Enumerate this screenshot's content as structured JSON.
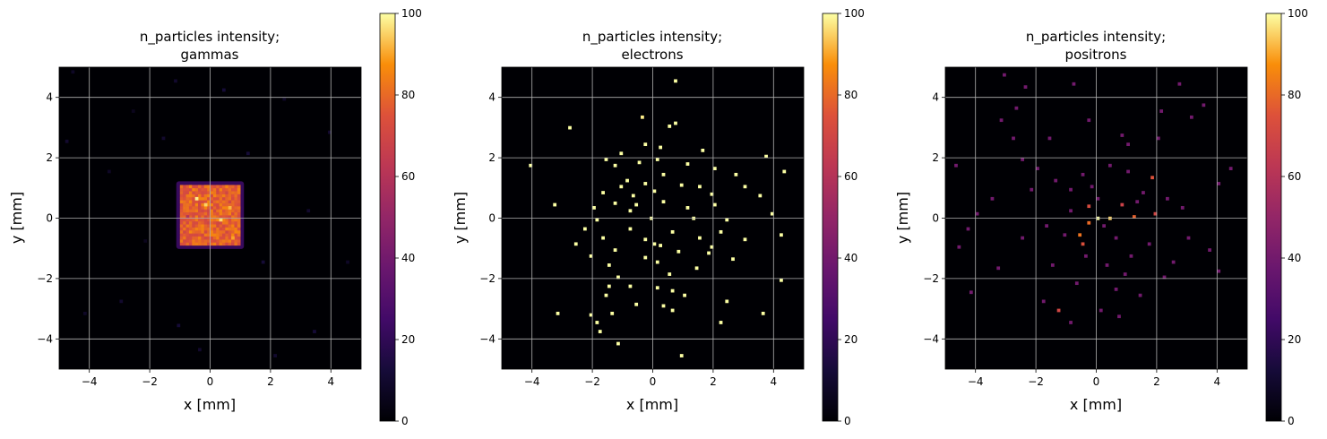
{
  "chart_data": [
    {
      "type": "heatmap",
      "title_line1": "n_particles intensity;",
      "title_line2": "gammas",
      "xlabel": "x [mm]",
      "ylabel": "y [mm]",
      "xlim": [
        -5,
        5
      ],
      "ylim": [
        -5,
        5
      ],
      "xticks": [
        "−4",
        "−2",
        "0",
        "2",
        "4"
      ],
      "yticks": [
        "−4",
        "−2",
        "0",
        "2",
        "4"
      ],
      "grid": true,
      "colormap": "inferno",
      "color_range": [
        0,
        100
      ],
      "colorbar_ticks": [
        "0",
        "20",
        "40",
        "60",
        "80",
        "100"
      ],
      "background_value": 0,
      "regions": [
        {
          "x_range": [
            -1.0,
            1.0
          ],
          "y_range": [
            -0.9,
            1.1
          ],
          "value": 78,
          "jitter": 8
        }
      ],
      "hot_cells": [
        {
          "x": -0.5,
          "y": 0.6,
          "value": 98
        },
        {
          "x": 0.3,
          "y": -0.1,
          "value": 96
        },
        {
          "x": -0.2,
          "y": 0.4,
          "value": 95
        },
        {
          "x": 0.6,
          "y": 0.3,
          "value": 92
        },
        {
          "x": 0.7,
          "y": -0.7,
          "value": 90
        },
        {
          "x": -0.8,
          "y": 0.0,
          "value": 60
        }
      ],
      "points": [
        {
          "x": -4.6,
          "y": 4.8,
          "value": 8
        },
        {
          "x": -2.6,
          "y": 3.5,
          "value": 6
        },
        {
          "x": -1.2,
          "y": 4.5,
          "value": 10
        },
        {
          "x": 0.4,
          "y": 4.2,
          "value": 12
        },
        {
          "x": -4.8,
          "y": 2.5,
          "value": 10
        },
        {
          "x": -3.4,
          "y": 1.5,
          "value": 8
        },
        {
          "x": -2.2,
          "y": -0.8,
          "value": 6
        },
        {
          "x": -4.2,
          "y": -3.2,
          "value": 8
        },
        {
          "x": -3.0,
          "y": -2.8,
          "value": 10
        },
        {
          "x": -1.1,
          "y": -3.6,
          "value": 12
        },
        {
          "x": 2.1,
          "y": -4.6,
          "value": 10
        },
        {
          "x": 3.4,
          "y": -3.8,
          "value": 12
        },
        {
          "x": 3.9,
          "y": 2.8,
          "value": 10
        },
        {
          "x": 2.4,
          "y": 3.9,
          "value": 8
        },
        {
          "x": 3.2,
          "y": 0.2,
          "value": 10
        },
        {
          "x": 4.5,
          "y": -1.5,
          "value": 8
        },
        {
          "x": 1.7,
          "y": -1.5,
          "value": 12
        },
        {
          "x": -0.4,
          "y": -4.4,
          "value": 10
        },
        {
          "x": 1.2,
          "y": 2.1,
          "value": 12
        },
        {
          "x": -1.6,
          "y": 2.6,
          "value": 10
        }
      ]
    },
    {
      "type": "heatmap",
      "title_line1": "n_particles intensity;",
      "title_line2": "electrons",
      "xlabel": "x [mm]",
      "ylabel": "y [mm]",
      "xlim": [
        -5,
        5
      ],
      "ylim": [
        -5,
        5
      ],
      "xticks": [
        "−4",
        "−2",
        "0",
        "2",
        "4"
      ],
      "yticks": [
        "−4",
        "−2",
        "0",
        "2",
        "4"
      ],
      "grid": true,
      "colormap": "inferno",
      "color_range": [
        0,
        100
      ],
      "colorbar_ticks": [
        "0",
        "20",
        "40",
        "60",
        "80",
        "100"
      ],
      "background_value": 0,
      "regions": [],
      "hot_cells": [],
      "points": [
        {
          "x": 0.7,
          "y": 4.5,
          "value": 100
        },
        {
          "x": -0.4,
          "y": 3.3,
          "value": 98
        },
        {
          "x": 0.7,
          "y": 3.1,
          "value": 100
        },
        {
          "x": 0.5,
          "y": 3.0,
          "value": 100
        },
        {
          "x": -2.8,
          "y": 2.95,
          "value": 100
        },
        {
          "x": -1.1,
          "y": 2.1,
          "value": 100
        },
        {
          "x": -0.3,
          "y": 2.4,
          "value": 100
        },
        {
          "x": 0.2,
          "y": 2.3,
          "value": 100
        },
        {
          "x": 1.6,
          "y": 2.2,
          "value": 100
        },
        {
          "x": 3.7,
          "y": 2.0,
          "value": 100
        },
        {
          "x": -4.1,
          "y": 1.7,
          "value": 100
        },
        {
          "x": -1.6,
          "y": 1.9,
          "value": 100
        },
        {
          "x": -1.3,
          "y": 1.7,
          "value": 100
        },
        {
          "x": -0.5,
          "y": 1.8,
          "value": 100
        },
        {
          "x": 1.1,
          "y": 1.75,
          "value": 100
        },
        {
          "x": 2.0,
          "y": 1.6,
          "value": 100
        },
        {
          "x": 4.3,
          "y": 1.5,
          "value": 100
        },
        {
          "x": -0.9,
          "y": 1.2,
          "value": 100
        },
        {
          "x": 0.3,
          "y": 1.4,
          "value": 100
        },
        {
          "x": 2.7,
          "y": 1.4,
          "value": 100
        },
        {
          "x": -1.1,
          "y": 1.0,
          "value": 100
        },
        {
          "x": -0.3,
          "y": 1.1,
          "value": 100
        },
        {
          "x": 0.9,
          "y": 1.05,
          "value": 100
        },
        {
          "x": 1.5,
          "y": 1.0,
          "value": 100
        },
        {
          "x": 3.0,
          "y": 1.0,
          "value": 100
        },
        {
          "x": -1.7,
          "y": 0.8,
          "value": 100
        },
        {
          "x": -0.7,
          "y": 0.7,
          "value": 100
        },
        {
          "x": 0.0,
          "y": 0.85,
          "value": 100
        },
        {
          "x": 1.9,
          "y": 0.75,
          "value": 100
        },
        {
          "x": 3.5,
          "y": 0.7,
          "value": 100
        },
        {
          "x": -3.3,
          "y": 0.4,
          "value": 100
        },
        {
          "x": -1.3,
          "y": 0.45,
          "value": 100
        },
        {
          "x": 0.3,
          "y": 0.5,
          "value": 100
        },
        {
          "x": 2.0,
          "y": 0.4,
          "value": 100
        },
        {
          "x": -2.0,
          "y": 0.3,
          "value": 100
        },
        {
          "x": -0.8,
          "y": 0.2,
          "value": 100
        },
        {
          "x": 1.1,
          "y": 0.3,
          "value": 100
        },
        {
          "x": 3.9,
          "y": 0.1,
          "value": 100
        },
        {
          "x": -1.9,
          "y": -0.1,
          "value": 100
        },
        {
          "x": -0.1,
          "y": -0.05,
          "value": 100
        },
        {
          "x": 1.3,
          "y": -0.05,
          "value": 100
        },
        {
          "x": -2.3,
          "y": -0.4,
          "value": 100
        },
        {
          "x": -0.8,
          "y": -0.4,
          "value": 100
        },
        {
          "x": 0.6,
          "y": -0.5,
          "value": 100
        },
        {
          "x": 2.2,
          "y": -0.5,
          "value": 100
        },
        {
          "x": 4.2,
          "y": -0.6,
          "value": 100
        },
        {
          "x": -1.7,
          "y": -0.7,
          "value": 100
        },
        {
          "x": -0.3,
          "y": -0.75,
          "value": 100
        },
        {
          "x": 1.5,
          "y": -0.7,
          "value": 100
        },
        {
          "x": 3.0,
          "y": -0.75,
          "value": 100
        },
        {
          "x": -2.6,
          "y": -0.9,
          "value": 100
        },
        {
          "x": 0.0,
          "y": -0.9,
          "value": 100
        },
        {
          "x": 0.2,
          "y": -0.95,
          "value": 100
        },
        {
          "x": 1.9,
          "y": -1.0,
          "value": 100
        },
        {
          "x": -1.3,
          "y": -1.1,
          "value": 100
        },
        {
          "x": 0.8,
          "y": -1.15,
          "value": 100
        },
        {
          "x": 1.8,
          "y": -1.2,
          "value": 100
        },
        {
          "x": -2.1,
          "y": -1.3,
          "value": 100
        },
        {
          "x": -0.3,
          "y": -1.35,
          "value": 100
        },
        {
          "x": 2.6,
          "y": -1.4,
          "value": 100
        },
        {
          "x": -1.5,
          "y": -1.6,
          "value": 100
        },
        {
          "x": 0.1,
          "y": -1.5,
          "value": 100
        },
        {
          "x": 1.4,
          "y": -1.7,
          "value": 100
        },
        {
          "x": -1.2,
          "y": -2.0,
          "value": 100
        },
        {
          "x": 0.5,
          "y": -1.9,
          "value": 100
        },
        {
          "x": 4.2,
          "y": -2.1,
          "value": 100
        },
        {
          "x": -1.5,
          "y": -2.3,
          "value": 100
        },
        {
          "x": -0.8,
          "y": -2.3,
          "value": 100
        },
        {
          "x": 0.1,
          "y": -2.35,
          "value": 100
        },
        {
          "x": 0.6,
          "y": -2.45,
          "value": 100
        },
        {
          "x": -1.6,
          "y": -2.6,
          "value": 100
        },
        {
          "x": 1.0,
          "y": -2.6,
          "value": 100
        },
        {
          "x": -0.6,
          "y": -2.9,
          "value": 100
        },
        {
          "x": 0.3,
          "y": -2.95,
          "value": 100
        },
        {
          "x": 2.4,
          "y": -2.8,
          "value": 100
        },
        {
          "x": -3.2,
          "y": -3.2,
          "value": 100
        },
        {
          "x": -2.1,
          "y": -3.25,
          "value": 100
        },
        {
          "x": -1.4,
          "y": -3.2,
          "value": 100
        },
        {
          "x": 0.6,
          "y": -3.1,
          "value": 100
        },
        {
          "x": 3.6,
          "y": -3.2,
          "value": 100
        },
        {
          "x": -1.9,
          "y": -3.5,
          "value": 100
        },
        {
          "x": 2.2,
          "y": -3.5,
          "value": 100
        },
        {
          "x": -1.8,
          "y": -3.8,
          "value": 100
        },
        {
          "x": -1.2,
          "y": -4.2,
          "value": 100
        },
        {
          "x": 0.9,
          "y": -4.6,
          "value": 100
        },
        {
          "x": 0.1,
          "y": 1.9,
          "value": 100
        },
        {
          "x": -0.6,
          "y": 0.4,
          "value": 100
        },
        {
          "x": 2.4,
          "y": -0.1,
          "value": 100
        }
      ]
    },
    {
      "type": "heatmap",
      "title_line1": "n_particles intensity;",
      "title_line2": "positrons",
      "xlabel": "x [mm]",
      "ylabel": "y [mm]",
      "xlim": [
        -5,
        5
      ],
      "ylim": [
        -5,
        5
      ],
      "xticks": [
        "−4",
        "−2",
        "0",
        "2",
        "4"
      ],
      "yticks": [
        "−4",
        "−2",
        "0",
        "2",
        "4"
      ],
      "grid": true,
      "colormap": "inferno",
      "color_range": [
        0,
        100
      ],
      "colorbar_ticks": [
        "0",
        "20",
        "40",
        "60",
        "80",
        "100"
      ],
      "background_value": 0,
      "regions": [],
      "hot_cells": [
        {
          "x": 0.0,
          "y": -0.05,
          "value": 100
        },
        {
          "x": 0.4,
          "y": -0.05,
          "value": 95
        },
        {
          "x": -0.3,
          "y": -0.2,
          "value": 80
        },
        {
          "x": -0.6,
          "y": -0.6,
          "value": 82
        },
        {
          "x": 1.2,
          "y": 0.0,
          "value": 78
        },
        {
          "x": 1.8,
          "y": 1.3,
          "value": 75
        },
        {
          "x": 1.9,
          "y": 0.1,
          "value": 70
        },
        {
          "x": -1.3,
          "y": -3.1,
          "value": 70
        },
        {
          "x": -0.3,
          "y": 0.35,
          "value": 72
        },
        {
          "x": 0.8,
          "y": 0.4,
          "value": 68
        },
        {
          "x": -0.5,
          "y": -0.9,
          "value": 74
        }
      ],
      "points": [
        {
          "x": -3.1,
          "y": 4.7,
          "value": 40
        },
        {
          "x": -2.4,
          "y": 4.3,
          "value": 40
        },
        {
          "x": -2.7,
          "y": 3.6,
          "value": 40
        },
        {
          "x": -0.8,
          "y": 4.4,
          "value": 40
        },
        {
          "x": -3.2,
          "y": 3.2,
          "value": 40
        },
        {
          "x": 2.7,
          "y": 4.4,
          "value": 40
        },
        {
          "x": 3.5,
          "y": 3.7,
          "value": 40
        },
        {
          "x": 3.1,
          "y": 3.3,
          "value": 40
        },
        {
          "x": 2.1,
          "y": 3.5,
          "value": 40
        },
        {
          "x": -0.3,
          "y": 3.2,
          "value": 40
        },
        {
          "x": -4.7,
          "y": 1.7,
          "value": 40
        },
        {
          "x": -2.5,
          "y": 1.9,
          "value": 40
        },
        {
          "x": -1.6,
          "y": 2.6,
          "value": 40
        },
        {
          "x": 0.8,
          "y": 2.7,
          "value": 40
        },
        {
          "x": 1.0,
          "y": 2.4,
          "value": 40
        },
        {
          "x": 4.0,
          "y": 1.1,
          "value": 40
        },
        {
          "x": -2.5,
          "y": -0.7,
          "value": 40
        },
        {
          "x": -4.6,
          "y": -1.0,
          "value": 40
        },
        {
          "x": -4.2,
          "y": -2.5,
          "value": 40
        },
        {
          "x": -3.3,
          "y": -1.7,
          "value": 40
        },
        {
          "x": -1.8,
          "y": -2.8,
          "value": 40
        },
        {
          "x": -0.9,
          "y": -3.5,
          "value": 40
        },
        {
          "x": 0.1,
          "y": -3.1,
          "value": 40
        },
        {
          "x": 0.7,
          "y": -3.3,
          "value": 40
        },
        {
          "x": 3.7,
          "y": -1.1,
          "value": 40
        },
        {
          "x": 2.5,
          "y": -1.5,
          "value": 40
        },
        {
          "x": 3.0,
          "y": -0.7,
          "value": 40
        },
        {
          "x": -4.0,
          "y": 0.1,
          "value": 40
        },
        {
          "x": -3.5,
          "y": 0.6,
          "value": 40
        },
        {
          "x": -2.0,
          "y": 1.6,
          "value": 40
        },
        {
          "x": -1.4,
          "y": 1.2,
          "value": 40
        },
        {
          "x": -0.9,
          "y": 0.9,
          "value": 40
        },
        {
          "x": -0.2,
          "y": 1.0,
          "value": 40
        },
        {
          "x": 0.4,
          "y": 1.7,
          "value": 40
        },
        {
          "x": 1.0,
          "y": 1.5,
          "value": 40
        },
        {
          "x": 1.5,
          "y": 0.8,
          "value": 40
        },
        {
          "x": 2.3,
          "y": 0.6,
          "value": 40
        },
        {
          "x": 2.8,
          "y": 0.3,
          "value": 40
        },
        {
          "x": -1.7,
          "y": -0.3,
          "value": 40
        },
        {
          "x": -1.1,
          "y": -0.6,
          "value": 40
        },
        {
          "x": -0.4,
          "y": -1.3,
          "value": 40
        },
        {
          "x": 0.3,
          "y": -1.6,
          "value": 40
        },
        {
          "x": 1.1,
          "y": -1.3,
          "value": 40
        },
        {
          "x": 1.7,
          "y": -0.9,
          "value": 40
        },
        {
          "x": 2.2,
          "y": -2.0,
          "value": 40
        },
        {
          "x": -0.7,
          "y": -2.2,
          "value": 40
        },
        {
          "x": 0.6,
          "y": -2.4,
          "value": 40
        },
        {
          "x": 1.4,
          "y": -2.6,
          "value": 40
        },
        {
          "x": -2.2,
          "y": 0.9,
          "value": 40
        },
        {
          "x": 0.0,
          "y": 0.6,
          "value": 40
        },
        {
          "x": 0.6,
          "y": -0.7,
          "value": 40
        },
        {
          "x": -0.9,
          "y": 0.2,
          "value": 40
        },
        {
          "x": 1.3,
          "y": 0.5,
          "value": 40
        },
        {
          "x": -1.5,
          "y": -1.6,
          "value": 40
        },
        {
          "x": 0.9,
          "y": -1.9,
          "value": 40
        },
        {
          "x": -4.3,
          "y": -0.4,
          "value": 40
        },
        {
          "x": 4.4,
          "y": 1.6,
          "value": 40
        },
        {
          "x": 4.0,
          "y": -1.8,
          "value": 40
        },
        {
          "x": -2.8,
          "y": 2.6,
          "value": 40
        },
        {
          "x": 2.0,
          "y": 2.6,
          "value": 40
        },
        {
          "x": -0.5,
          "y": 1.4,
          "value": 40
        },
        {
          "x": 0.2,
          "y": -0.3,
          "value": 40
        }
      ]
    }
  ]
}
